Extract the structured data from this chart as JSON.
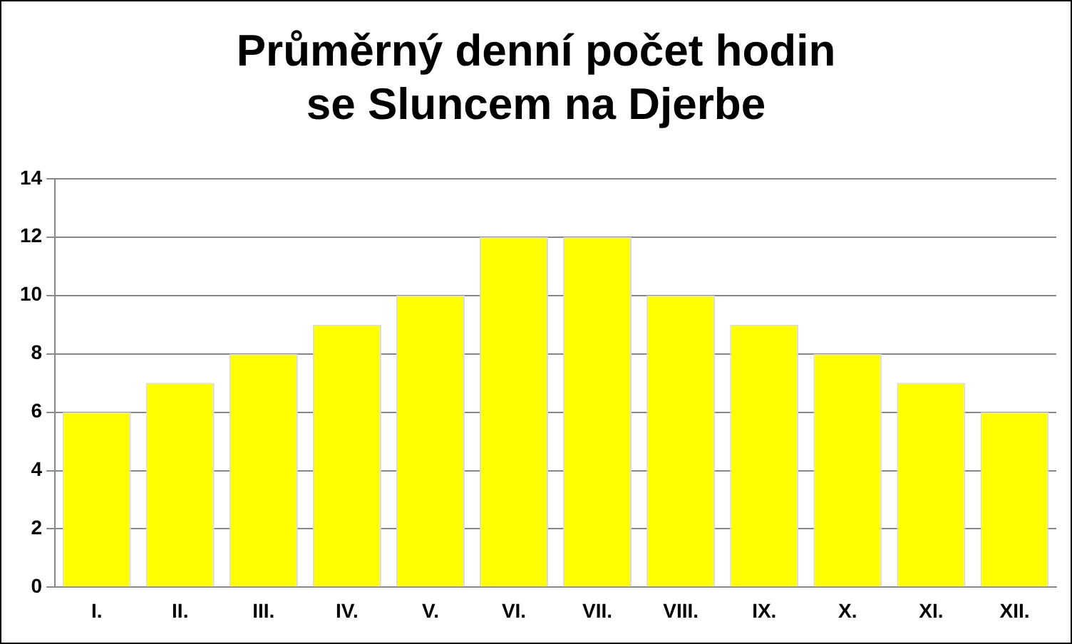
{
  "chart_data": {
    "type": "bar",
    "title": "Průměrný denní počet hodin se Sluncem na Djerbe",
    "categories": [
      "I.",
      "II.",
      "III.",
      "IV.",
      "V.",
      "VI.",
      "VII.",
      "VIII.",
      "IX.",
      "X.",
      "XI.",
      "XII."
    ],
    "values": [
      6,
      7,
      8,
      9,
      10,
      12,
      12,
      10,
      9,
      8,
      7,
      6
    ],
    "color": "#ffff00",
    "ylim": [
      0,
      14
    ],
    "yticks": [
      0,
      2,
      4,
      6,
      8,
      10,
      12,
      14
    ],
    "grid": "y",
    "legend": false
  }
}
